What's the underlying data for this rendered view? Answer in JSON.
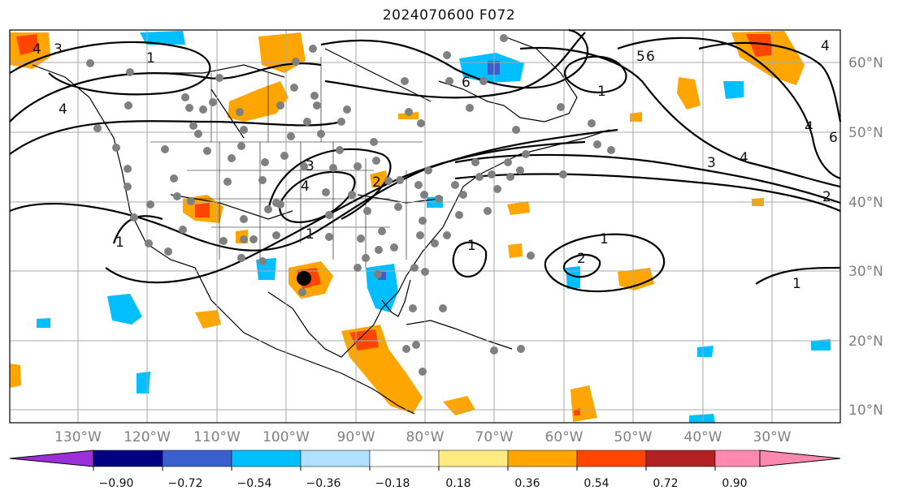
{
  "title": "2024070600 F072",
  "longitude_labels": [
    "130°W",
    "120°W",
    "110°W",
    "100°W",
    "90°W",
    "80°W",
    "70°W",
    "60°W",
    "50°W",
    "40°W",
    "30°W"
  ],
  "latitude_labels": [
    "60°N",
    "50°N",
    "40°N",
    "30°N",
    "20°N",
    "10°N"
  ],
  "colorbar": {
    "labels": [
      "−0.90",
      "−0.72",
      "−0.54",
      "−0.36",
      "−0.18",
      "0.18",
      "0.36",
      "0.54",
      "0.72",
      "0.90"
    ],
    "colors": [
      "#9b30d9",
      "#000080",
      "#3a5fcd",
      "#00bfff",
      "#b0e0ff",
      "#ffffff",
      "#ffeb80",
      "#ffa500",
      "#ff4500",
      "#b22222",
      "#ff88b0"
    ]
  },
  "contour_labels": [
    "1",
    "2",
    "3",
    "4",
    "5",
    "6"
  ],
  "legend_colors": {
    "orange": "#ffa500",
    "red": "#ff4500",
    "blue": "#00bfff",
    "darkblue": "#3a5fcd",
    "contour": "#000000",
    "station": "#808080"
  }
}
